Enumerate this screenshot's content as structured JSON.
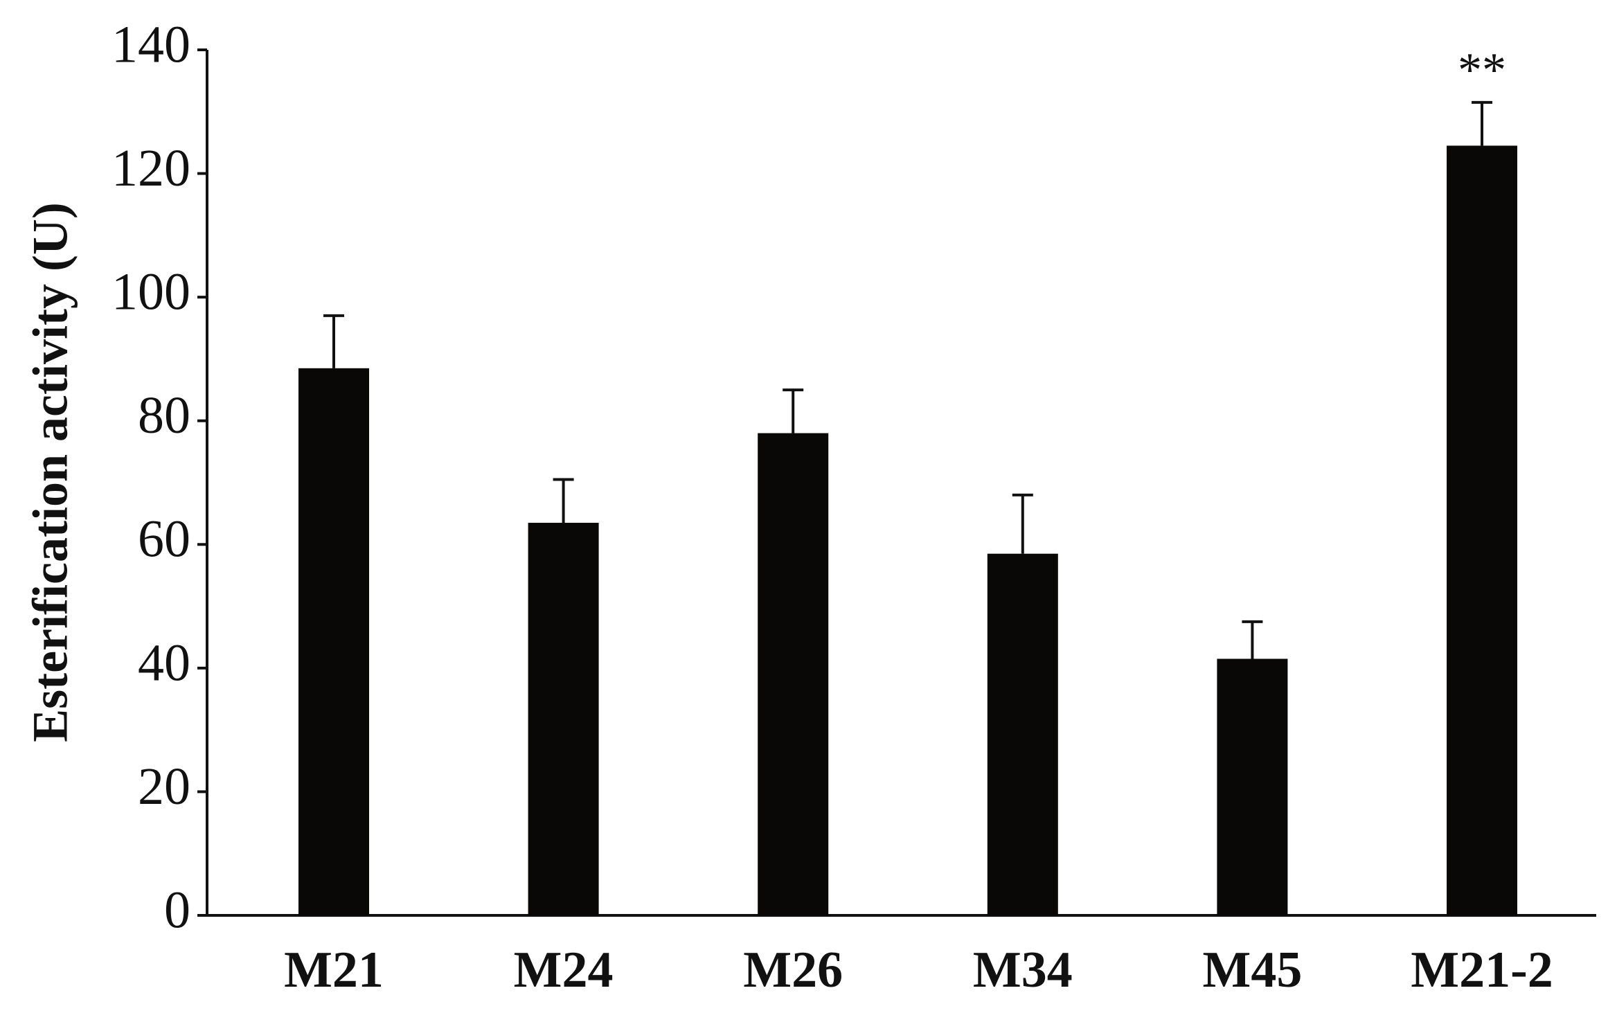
{
  "chart_data": {
    "type": "bar",
    "y_label": "Esterification activity (U)",
    "categories": [
      "M21",
      "M24",
      "M26",
      "M34",
      "M45",
      "M21-2"
    ],
    "values": [
      88.5,
      63.5,
      78,
      58.5,
      41.5,
      124.5
    ],
    "errors": [
      8.5,
      7,
      7,
      9.5,
      6,
      7
    ],
    "color": "#0a0806",
    "ylim": [
      0,
      140
    ],
    "yticks": [
      0,
      20,
      40,
      60,
      80,
      100,
      120,
      140
    ],
    "annotations": [
      {
        "text": "**",
        "category": "M21-2"
      }
    ]
  }
}
